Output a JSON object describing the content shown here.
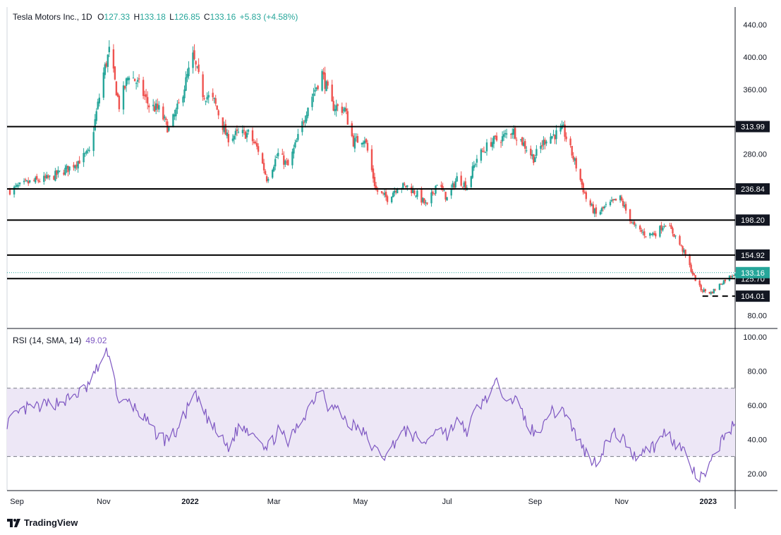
{
  "legend": {
    "symbol": "Tesla Motors Inc., 1D",
    "o_label": "O",
    "o": "127.33",
    "h_label": "H",
    "h": "133.18",
    "l_label": "L",
    "l": "126.85",
    "c_label": "C",
    "c": "133.16",
    "change": "+5.83 (+4.58%)"
  },
  "rsi_legend": {
    "label": "RSI (14, SMA, 14)",
    "value": "49.02"
  },
  "brand": {
    "name": "TradingView",
    "icon": "tradingview-logo"
  },
  "colors": {
    "up": "#26a69a",
    "down": "#ef5350",
    "rsi": "#7e57c2",
    "rsi_band": "#ede7f6",
    "level": "#000000"
  },
  "chart_data": [
    {
      "type": "candlestick",
      "title": "Tesla Motors Inc., 1D",
      "x_ticks": [
        "Sep",
        "Nov",
        "2022",
        "Mar",
        "May",
        "Jul",
        "Sep",
        "Nov",
        "2023"
      ],
      "x_range": [
        "2021-08-25",
        "2023-01-20"
      ],
      "y_ticks": [
        80,
        120,
        160,
        200,
        240,
        280,
        320,
        360,
        400,
        440
      ],
      "y_tick_labels": [
        "80.00",
        "",
        "",
        "",
        "",
        "280.00",
        "",
        "360.00",
        "400.00",
        "440.00"
      ],
      "ylim": [
        64,
        462
      ],
      "grid": false,
      "levels": [
        313.99,
        236.84,
        198.2,
        154.92,
        125.7
      ],
      "level_labels": [
        "313.99",
        "236.84",
        "198.20",
        "154.92",
        "125.70"
      ],
      "support_dashed": 104.01,
      "support_label": "104.01",
      "last_price": 133.16,
      "last_price_label": "133.16",
      "close_path": [
        [
          "2021-08-27",
          235
        ],
        [
          "2021-09-10",
          245
        ],
        [
          "2021-09-24",
          250
        ],
        [
          "2021-10-08",
          263
        ],
        [
          "2021-10-22",
          282
        ],
        [
          "2021-11-01",
          380
        ],
        [
          "2021-11-05",
          407
        ],
        [
          "2021-11-12",
          340
        ],
        [
          "2021-11-19",
          380
        ],
        [
          "2021-11-26",
          365
        ],
        [
          "2021-12-03",
          340
        ],
        [
          "2021-12-10",
          335
        ],
        [
          "2021-12-17",
          310
        ],
        [
          "2021-12-24",
          340
        ],
        [
          "2022-01-03",
          400
        ],
        [
          "2022-01-10",
          355
        ],
        [
          "2022-01-18",
          345
        ],
        [
          "2022-01-27",
          300
        ],
        [
          "2022-02-04",
          305
        ],
        [
          "2022-02-11",
          305
        ],
        [
          "2022-02-18",
          285
        ],
        [
          "2022-02-24",
          250
        ],
        [
          "2022-03-04",
          280
        ],
        [
          "2022-03-11",
          265
        ],
        [
          "2022-03-18",
          300
        ],
        [
          "2022-03-25",
          340
        ],
        [
          "2022-04-04",
          380
        ],
        [
          "2022-04-11",
          340
        ],
        [
          "2022-04-20",
          335
        ],
        [
          "2022-04-26",
          295
        ],
        [
          "2022-05-04",
          300
        ],
        [
          "2022-05-12",
          235
        ],
        [
          "2022-05-20",
          225
        ],
        [
          "2022-05-27",
          240
        ],
        [
          "2022-06-03",
          240
        ],
        [
          "2022-06-10",
          230
        ],
        [
          "2022-06-17",
          215
        ],
        [
          "2022-06-24",
          245
        ],
        [
          "2022-07-01",
          225
        ],
        [
          "2022-07-08",
          250
        ],
        [
          "2022-07-15",
          240
        ],
        [
          "2022-07-22",
          275
        ],
        [
          "2022-08-01",
          295
        ],
        [
          "2022-08-09",
          300
        ],
        [
          "2022-08-16",
          310
        ],
        [
          "2022-08-23",
          295
        ],
        [
          "2022-08-31",
          275
        ],
        [
          "2022-09-09",
          300
        ],
        [
          "2022-09-16",
          305
        ],
        [
          "2022-09-21",
          310
        ],
        [
          "2022-09-30",
          265
        ],
        [
          "2022-10-07",
          225
        ],
        [
          "2022-10-14",
          205
        ],
        [
          "2022-10-21",
          215
        ],
        [
          "2022-10-31",
          225
        ],
        [
          "2022-11-04",
          210
        ],
        [
          "2022-11-10",
          190
        ],
        [
          "2022-11-18",
          180
        ],
        [
          "2022-11-25",
          182
        ],
        [
          "2022-12-02",
          195
        ],
        [
          "2022-12-09",
          178
        ],
        [
          "2022-12-15",
          158
        ],
        [
          "2022-12-22",
          128
        ],
        [
          "2022-12-27",
          112
        ],
        [
          "2023-01-03",
          108
        ],
        [
          "2023-01-06",
          113
        ],
        [
          "2023-01-12",
          123
        ],
        [
          "2023-01-20",
          133.16
        ]
      ]
    },
    {
      "type": "line",
      "title": "RSI (14, SMA, 14)",
      "y_ticks": [
        20,
        40,
        60,
        80,
        100
      ],
      "y_tick_labels": [
        "20.00",
        "40.00",
        "60.00",
        "80.00",
        "100.00"
      ],
      "ylim": [
        10,
        105
      ],
      "band": [
        30,
        70
      ],
      "last_value": 49.02,
      "series": [
        [
          [
            "2021-08-25",
            50
          ],
          [
            "2021-09-08",
            58
          ],
          [
            "2021-09-22",
            60
          ],
          [
            "2021-10-06",
            63
          ],
          [
            "2021-10-20",
            70
          ],
          [
            "2021-11-01",
            88
          ],
          [
            "2021-11-05",
            92
          ],
          [
            "2021-11-12",
            60
          ],
          [
            "2021-11-19",
            62
          ],
          [
            "2021-11-26",
            56
          ],
          [
            "2021-12-06",
            45
          ],
          [
            "2021-12-14",
            40
          ],
          [
            "2021-12-22",
            44
          ],
          [
            "2022-01-04",
            66
          ],
          [
            "2022-01-12",
            54
          ],
          [
            "2022-01-21",
            42
          ],
          [
            "2022-01-28",
            35
          ],
          [
            "2022-02-04",
            47
          ],
          [
            "2022-02-11",
            46
          ],
          [
            "2022-02-18",
            43
          ],
          [
            "2022-02-24",
            34
          ],
          [
            "2022-03-04",
            45
          ],
          [
            "2022-03-11",
            38
          ],
          [
            "2022-03-18",
            48
          ],
          [
            "2022-03-25",
            58
          ],
          [
            "2022-04-04",
            72
          ],
          [
            "2022-04-08",
            60
          ],
          [
            "2022-04-14",
            58
          ],
          [
            "2022-04-22",
            50
          ],
          [
            "2022-05-02",
            45
          ],
          [
            "2022-05-12",
            33
          ],
          [
            "2022-05-20",
            30
          ],
          [
            "2022-05-27",
            42
          ],
          [
            "2022-06-03",
            45
          ],
          [
            "2022-06-10",
            40
          ],
          [
            "2022-06-17",
            38
          ],
          [
            "2022-06-24",
            48
          ],
          [
            "2022-07-01",
            43
          ],
          [
            "2022-07-08",
            50
          ],
          [
            "2022-07-15",
            45
          ],
          [
            "2022-07-22",
            58
          ],
          [
            "2022-08-01",
            68
          ],
          [
            "2022-08-05",
            72
          ],
          [
            "2022-08-12",
            66
          ],
          [
            "2022-08-19",
            62
          ],
          [
            "2022-08-26",
            50
          ],
          [
            "2022-09-02",
            42
          ],
          [
            "2022-09-09",
            55
          ],
          [
            "2022-09-16",
            56
          ],
          [
            "2022-09-21",
            58
          ],
          [
            "2022-09-30",
            42
          ],
          [
            "2022-10-07",
            32
          ],
          [
            "2022-10-14",
            26
          ],
          [
            "2022-10-21",
            38
          ],
          [
            "2022-10-28",
            44
          ],
          [
            "2022-11-04",
            38
          ],
          [
            "2022-11-10",
            30
          ],
          [
            "2022-11-18",
            35
          ],
          [
            "2022-11-25",
            36
          ],
          [
            "2022-12-02",
            45
          ],
          [
            "2022-12-09",
            38
          ],
          [
            "2022-12-15",
            33
          ],
          [
            "2022-12-22",
            20
          ],
          [
            "2022-12-27",
            17
          ],
          [
            "2023-01-03",
            25
          ],
          [
            "2023-01-06",
            32
          ],
          [
            "2023-01-12",
            42
          ],
          [
            "2023-01-20",
            49.02
          ]
        ]
      ]
    }
  ]
}
